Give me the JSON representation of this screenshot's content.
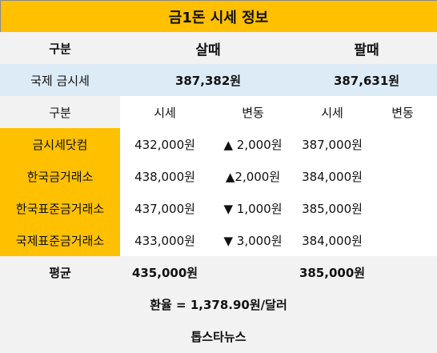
{
  "title": "금1돈 시세 정보",
  "header": {
    "category": "구분",
    "buy": "살때",
    "sell": "팔때"
  },
  "intl": {
    "label": "국제 금시세",
    "buy": "387,382원",
    "sell": "387,631원"
  },
  "subheader": {
    "category": "구분",
    "buy_price": "시세",
    "buy_change": "변동",
    "sell_price": "시세",
    "sell_change": "변동"
  },
  "rows": [
    {
      "name": "금시세닷컴",
      "buy_price": "432,000원",
      "buy_change": "▲ 2,000원",
      "sell_price": "387,000원",
      "sell_change": ""
    },
    {
      "name": "한국금거래소",
      "buy_price": "438,000원",
      "buy_change": "▲2,000원",
      "sell_price": "384,000원",
      "sell_change": ""
    },
    {
      "name": "한국표준금거래소",
      "buy_price": "437,000원",
      "buy_change": "▼ 1,000원",
      "sell_price": "385,000원",
      "sell_change": ""
    },
    {
      "name": "국제표준금거래소",
      "buy_price": "433,000원",
      "buy_change": "▼ 3,000원",
      "sell_price": "384,000원",
      "sell_change": ""
    }
  ],
  "average": {
    "label": "평균",
    "buy": "435,000원",
    "sell": "385,000원"
  },
  "exchange_rate": "환율 = 1,378.90원/달러",
  "source": "톱스타뉴스",
  "colors": {
    "accent": "#ffc000",
    "intl_row": "#ddebf7",
    "gray": "#f2f2f2"
  }
}
